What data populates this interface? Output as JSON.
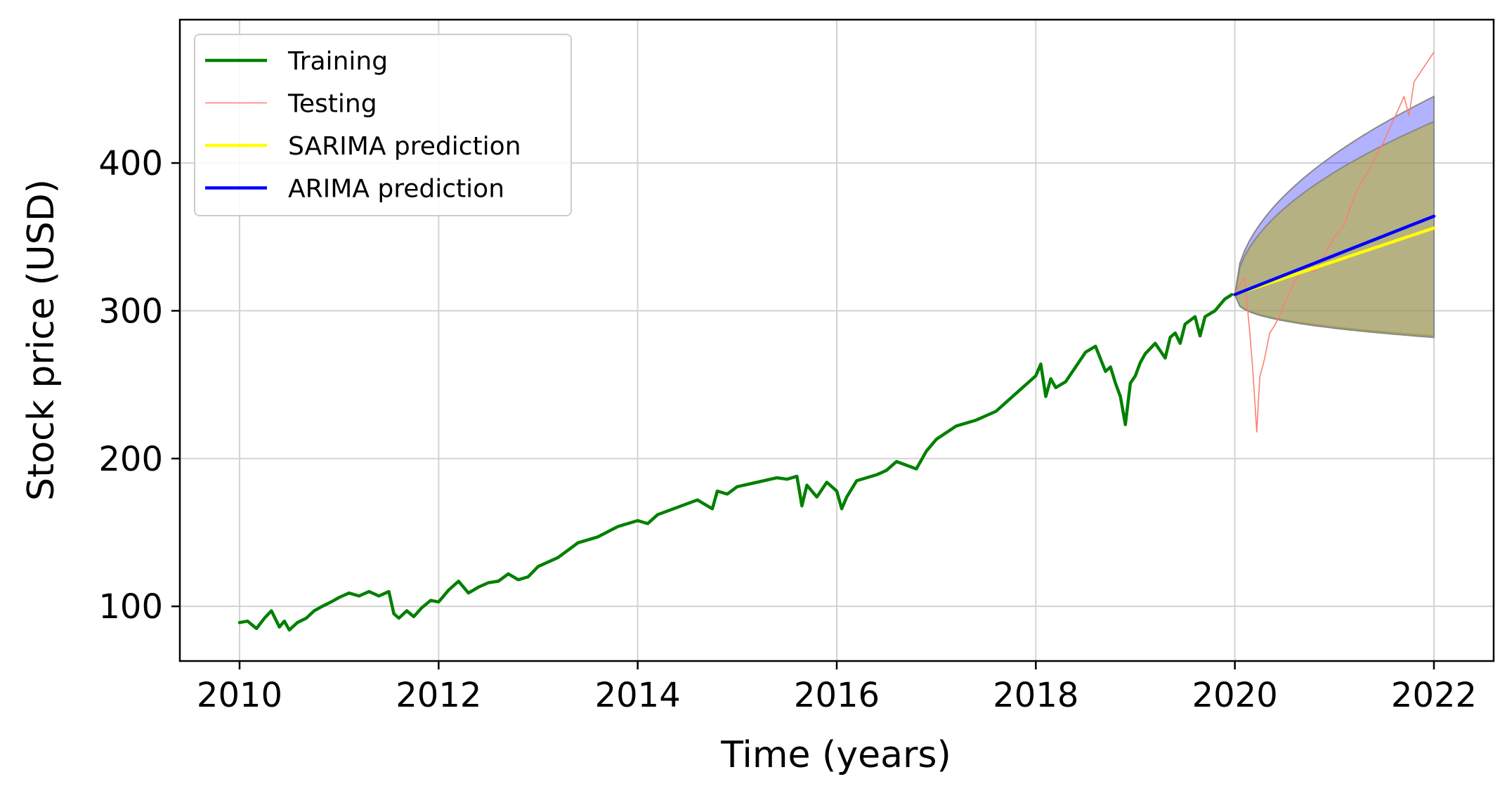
{
  "chart_data": {
    "type": "line",
    "title": "",
    "xlabel": "Time (years)",
    "ylabel": "Stock price (USD)",
    "xlim": [
      2009.4,
      2022.6
    ],
    "ylim": [
      63,
      497
    ],
    "xticks": [
      2010,
      2012,
      2014,
      2016,
      2018,
      2020,
      2022
    ],
    "xtick_labels": [
      "2010",
      "2012",
      "2014",
      "2016",
      "2018",
      "2020",
      "2022"
    ],
    "yticks": [
      100,
      200,
      300,
      400
    ],
    "ytick_labels": [
      "100",
      "200",
      "300",
      "400"
    ],
    "grid": true,
    "legend_position": "top-left",
    "legend": [
      {
        "label": "Training",
        "color": "#008000",
        "style": "thick"
      },
      {
        "label": "Testing",
        "color": "#fa8072",
        "style": "thin"
      },
      {
        "label": "SARIMA prediction",
        "color": "#ffff00",
        "style": "thick"
      },
      {
        "label": "ARIMA prediction",
        "color": "#0000ff",
        "style": "thick"
      }
    ],
    "series": [
      {
        "name": "Training",
        "color": "#008000",
        "x": [
          2010.0,
          2010.08,
          2010.17,
          2010.25,
          2010.32,
          2010.4,
          2010.45,
          2010.5,
          2010.58,
          2010.67,
          2010.75,
          2010.83,
          2010.92,
          2011.0,
          2011.1,
          2011.2,
          2011.3,
          2011.4,
          2011.5,
          2011.55,
          2011.6,
          2011.68,
          2011.75,
          2011.83,
          2011.92,
          2012.0,
          2012.1,
          2012.2,
          2012.3,
          2012.4,
          2012.5,
          2012.6,
          2012.7,
          2012.8,
          2012.9,
          2013.0,
          2013.2,
          2013.4,
          2013.6,
          2013.8,
          2014.0,
          2014.1,
          2014.2,
          2014.4,
          2014.6,
          2014.75,
          2014.8,
          2014.9,
          2015.0,
          2015.2,
          2015.4,
          2015.5,
          2015.6,
          2015.65,
          2015.7,
          2015.8,
          2015.9,
          2016.0,
          2016.05,
          2016.1,
          2016.2,
          2016.4,
          2016.5,
          2016.6,
          2016.8,
          2016.85,
          2016.9,
          2017.0,
          2017.2,
          2017.4,
          2017.6,
          2017.8,
          2018.0,
          2018.05,
          2018.1,
          2018.15,
          2018.2,
          2018.3,
          2018.4,
          2018.5,
          2018.6,
          2018.7,
          2018.75,
          2018.8,
          2018.85,
          2018.9,
          2018.95,
          2019.0,
          2019.05,
          2019.1,
          2019.2,
          2019.3,
          2019.35,
          2019.4,
          2019.45,
          2019.5,
          2019.6,
          2019.65,
          2019.7,
          2019.8,
          2019.9,
          2019.97
        ],
        "y": [
          89,
          90,
          85,
          92,
          97,
          86,
          90,
          84,
          89,
          92,
          97,
          100,
          103,
          106,
          109,
          107,
          110,
          107,
          110,
          95,
          92,
          97,
          93,
          99,
          104,
          103,
          111,
          117,
          109,
          113,
          116,
          117,
          122,
          118,
          120,
          127,
          133,
          143,
          147,
          154,
          158,
          156,
          162,
          167,
          172,
          166,
          178,
          176,
          181,
          184,
          187,
          186,
          188,
          168,
          182,
          174,
          184,
          178,
          166,
          174,
          185,
          189,
          192,
          198,
          193,
          199,
          205,
          213,
          222,
          226,
          232,
          244,
          256,
          264,
          242,
          254,
          248,
          252,
          262,
          272,
          276,
          259,
          262,
          251,
          242,
          223,
          251,
          256,
          265,
          271,
          278,
          268,
          282,
          285,
          278,
          291,
          296,
          283,
          296,
          300,
          308,
          311
        ]
      },
      {
        "name": "Testing",
        "color": "#fa8072",
        "x": [
          2020.0,
          2020.05,
          2020.1,
          2020.15,
          2020.18,
          2020.22,
          2020.25,
          2020.3,
          2020.35,
          2020.4,
          2020.45,
          2020.5,
          2020.6,
          2020.7,
          2020.8,
          2020.9,
          2021.0,
          2021.1,
          2021.2,
          2021.3,
          2021.4,
          2021.5,
          2021.6,
          2021.7,
          2021.75,
          2021.8,
          2021.9,
          2022.0
        ],
        "y": [
          312,
          318,
          322,
          285,
          260,
          218,
          255,
          268,
          285,
          290,
          297,
          305,
          320,
          330,
          326,
          338,
          350,
          358,
          378,
          390,
          402,
          415,
          430,
          445,
          432,
          455,
          465,
          475
        ]
      },
      {
        "name": "SARIMA prediction",
        "color": "#ffff00",
        "x": [
          2020.0,
          2022.0
        ],
        "y": [
          311,
          356
        ]
      },
      {
        "name": "ARIMA prediction",
        "color": "#0000ff",
        "x": [
          2020.0,
          2022.0
        ],
        "y": [
          311,
          364
        ]
      }
    ],
    "confidence_bands": [
      {
        "series": "ARIMA prediction",
        "fill": "#0000ff",
        "opacity": 0.3,
        "x_start": 2020.0,
        "x_end": 2022.0,
        "y_start": 311,
        "lower_end": 283,
        "upper_end": 445
      },
      {
        "series": "SARIMA prediction",
        "fill": "#b8b030",
        "opacity": 0.6,
        "x_start": 2020.0,
        "x_end": 2022.0,
        "y_start": 311,
        "lower_end": 282,
        "upper_end": 428
      }
    ]
  }
}
